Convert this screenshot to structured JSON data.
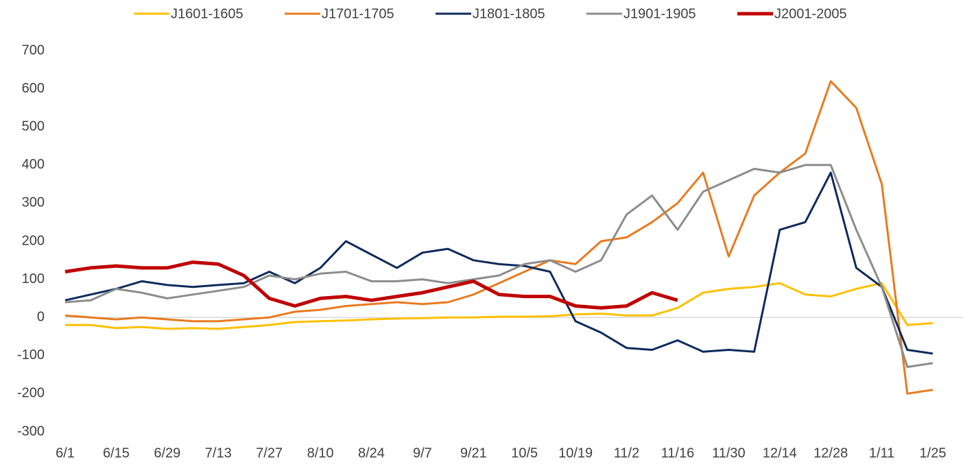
{
  "chart_data": {
    "type": "line",
    "categories": [
      "6/1",
      null,
      "6/15",
      null,
      "6/29",
      null,
      "7/13",
      null,
      "7/27",
      null,
      "8/10",
      null,
      "8/24",
      null,
      "9/7",
      null,
      "9/21",
      null,
      "10/5",
      null,
      "10/19",
      null,
      "11/2",
      null,
      "11/16",
      null,
      "11/30",
      null,
      "12/14",
      null,
      "12/28",
      null,
      "1/11",
      null,
      "1/25"
    ],
    "series": [
      {
        "name": "J1601-1605",
        "color": "#ffc000",
        "values": [
          -20,
          -20,
          -28,
          -25,
          -30,
          -28,
          -30,
          -25,
          -20,
          -12,
          -10,
          -8,
          -5,
          -3,
          -2,
          0,
          0,
          2,
          2,
          3,
          8,
          10,
          5,
          5,
          25,
          65,
          75,
          80,
          90,
          60,
          55,
          75,
          90,
          -20,
          -15
        ]
      },
      {
        "name": "J1701-1705",
        "color": "#e97a1f",
        "values": [
          5,
          0,
          -5,
          0,
          -5,
          -10,
          -10,
          -5,
          0,
          15,
          20,
          30,
          35,
          40,
          35,
          40,
          60,
          90,
          120,
          150,
          140,
          200,
          210,
          250,
          300,
          380,
          160,
          320,
          380,
          430,
          620,
          550,
          350,
          -200,
          -190
        ]
      },
      {
        "name": "J1801-1805",
        "color": "#0d2a5c",
        "values": [
          45,
          60,
          75,
          95,
          85,
          80,
          85,
          90,
          120,
          90,
          130,
          200,
          165,
          130,
          170,
          180,
          150,
          140,
          135,
          120,
          -10,
          -40,
          -80,
          -85,
          -60,
          -90,
          -85,
          -90,
          230,
          250,
          380,
          130,
          80,
          -85,
          -95
        ]
      },
      {
        "name": "J1901-1905",
        "color": "#8c8c8c",
        "values": [
          40,
          45,
          75,
          65,
          50,
          60,
          70,
          80,
          110,
          100,
          115,
          120,
          95,
          95,
          100,
          90,
          100,
          110,
          140,
          150,
          120,
          150,
          270,
          320,
          230,
          330,
          360,
          390,
          380,
          400,
          400,
          230,
          80,
          -130,
          -120
        ]
      },
      {
        "name": "J2001-2005",
        "color": "#c00000",
        "values": [
          120,
          130,
          135,
          130,
          130,
          145,
          140,
          110,
          50,
          30,
          50,
          55,
          45,
          55,
          65,
          80,
          95,
          60,
          55,
          55,
          30,
          25,
          30,
          65,
          45,
          null,
          null,
          null,
          null,
          null,
          null,
          null,
          null,
          null,
          null
        ]
      }
    ],
    "ylim": [
      -300,
      700
    ],
    "yticks": [
      -300,
      -200,
      -100,
      0,
      100,
      200,
      300,
      400,
      500,
      600,
      700
    ],
    "legend": "top"
  }
}
